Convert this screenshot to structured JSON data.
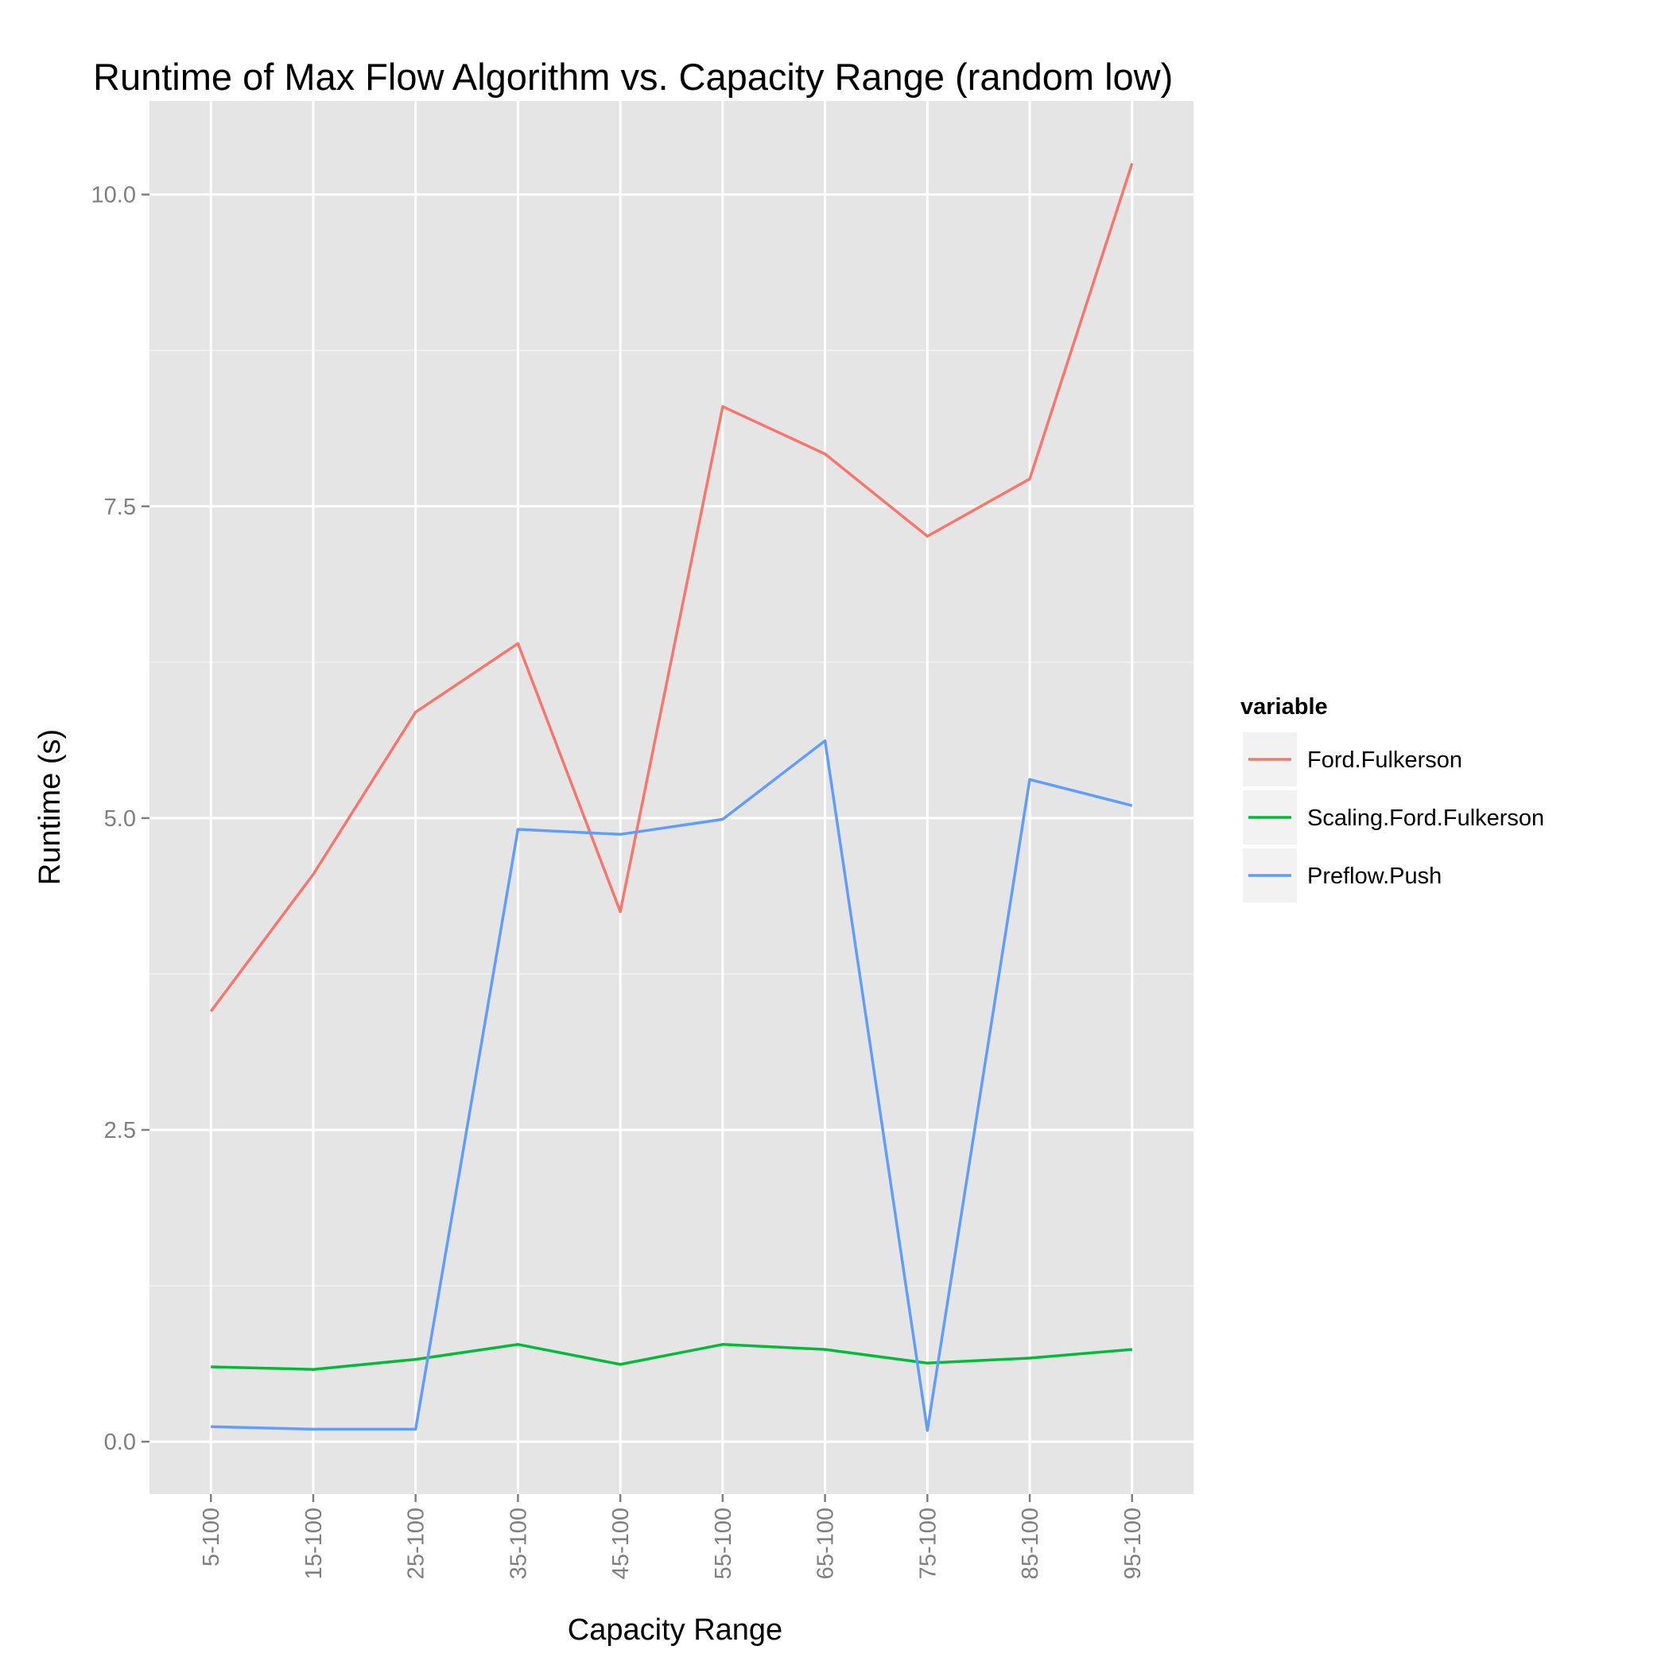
{
  "chart_data": {
    "type": "line",
    "title": "Runtime of Max Flow Algorithm vs. Capacity Range (random low)",
    "xlabel": "Capacity Range",
    "ylabel": "Runtime (s)",
    "categories": [
      "5-100",
      "15-100",
      "25-100",
      "35-100",
      "45-100",
      "55-100",
      "65-100",
      "75-100",
      "85-100",
      "95-100"
    ],
    "ylim": [
      -0.42,
      10.75
    ],
    "yticks": [
      0.0,
      2.5,
      5.0,
      7.5,
      10.0
    ],
    "yticklabels": [
      "0.0",
      "2.5",
      "5.0",
      "7.5",
      "10.0"
    ],
    "grid": true,
    "legend": {
      "title": "variable",
      "position": "right"
    },
    "series": [
      {
        "name": "Ford.Fulkerson",
        "color": "#F8766D",
        "values": [
          3.45,
          4.55,
          5.85,
          6.4,
          4.25,
          8.3,
          7.92,
          7.26,
          7.72,
          10.25
        ]
      },
      {
        "name": "Scaling.Ford.Fulkerson",
        "color": "#00BA38",
        "values": [
          0.6,
          0.58,
          0.66,
          0.78,
          0.62,
          0.78,
          0.74,
          0.63,
          0.67,
          0.74
        ]
      },
      {
        "name": "Preflow.Push",
        "color": "#619CFF",
        "values": [
          0.12,
          0.1,
          0.1,
          4.91,
          4.87,
          4.99,
          5.62,
          0.09,
          5.31,
          5.1
        ]
      }
    ]
  },
  "style": {
    "panel_background": "#E5E5E5",
    "grid_major": "#FFFFFF",
    "grid_minor": "#F2F2F2",
    "legend_key_background": "#F2F2F2"
  }
}
